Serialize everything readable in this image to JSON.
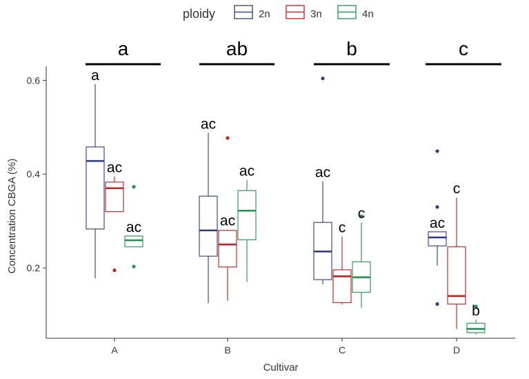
{
  "chart_data": {
    "type": "boxplot",
    "xlabel": "Cultivar",
    "ylabel": "Concentration CBGA  (%)",
    "ylim": [
      0.05,
      0.63
    ],
    "yticks": [
      {
        "value": 0.2,
        "label": "0.2"
      },
      {
        "value": 0.4,
        "label": "0.4"
      },
      {
        "value": 0.6,
        "label": "0.6"
      }
    ],
    "categories": [
      "A",
      "B",
      "C",
      "D"
    ],
    "legend": {
      "title": "ploidy",
      "position": "top",
      "entries": [
        {
          "name": "2n",
          "color": "#3d4a8c"
        },
        {
          "name": "3n",
          "color": "#cc2a2a"
        },
        {
          "name": "4n",
          "color": "#2e9b5a"
        }
      ]
    },
    "median_colors": {
      "2n": "#2e3c8a",
      "3n": "#c62020",
      "4n": "#1f9450"
    },
    "group_letters": [
      "a",
      "ab",
      "b",
      "c"
    ],
    "boxes": [
      {
        "category": "A",
        "series": "2n",
        "min": 0.178,
        "q1": 0.283,
        "median": 0.428,
        "q3": 0.458,
        "max": 0.592,
        "outliers": [],
        "letter": "a"
      },
      {
        "category": "A",
        "series": "3n",
        "min": 0.32,
        "q1": 0.32,
        "median": 0.37,
        "q3": 0.383,
        "max": 0.395,
        "outliers": [
          0.195
        ],
        "letter": "ac"
      },
      {
        "category": "A",
        "series": "4n",
        "min": 0.245,
        "q1": 0.245,
        "median": 0.259,
        "q3": 0.268,
        "max": 0.268,
        "outliers": [
          0.373,
          0.203
        ],
        "letter": "ac"
      },
      {
        "category": "B",
        "series": "2n",
        "min": 0.125,
        "q1": 0.225,
        "median": 0.28,
        "q3": 0.353,
        "max": 0.488,
        "outliers": [],
        "letter": "ac"
      },
      {
        "category": "B",
        "series": "3n",
        "min": 0.13,
        "q1": 0.202,
        "median": 0.25,
        "q3": 0.28,
        "max": 0.282,
        "outliers": [
          0.477
        ],
        "letter": "ac"
      },
      {
        "category": "B",
        "series": "4n",
        "min": 0.17,
        "q1": 0.26,
        "median": 0.322,
        "q3": 0.365,
        "max": 0.388,
        "outliers": [],
        "letter": "ac"
      },
      {
        "category": "C",
        "series": "2n",
        "min": 0.165,
        "q1": 0.175,
        "median": 0.235,
        "q3": 0.297,
        "max": 0.385,
        "outliers": [
          0.604
        ],
        "letter": "ac"
      },
      {
        "category": "C",
        "series": "3n",
        "min": 0.122,
        "q1": 0.126,
        "median": 0.182,
        "q3": 0.196,
        "max": 0.267,
        "outliers": [],
        "letter": "c"
      },
      {
        "category": "C",
        "series": "4n",
        "min": 0.115,
        "q1": 0.148,
        "median": 0.18,
        "q3": 0.213,
        "max": 0.297,
        "outliers": [
          0.31
        ],
        "letter": "c"
      },
      {
        "category": "D",
        "series": "2n",
        "min": 0.205,
        "q1": 0.247,
        "median": 0.265,
        "q3": 0.277,
        "max": 0.277,
        "outliers": [
          0.449,
          0.33,
          0.123
        ],
        "letter": "ac"
      },
      {
        "category": "D",
        "series": "3n",
        "min": 0.07,
        "q1": 0.123,
        "median": 0.14,
        "q3": 0.245,
        "max": 0.35,
        "outliers": [],
        "letter": "c"
      },
      {
        "category": "D",
        "series": "4n",
        "min": 0.058,
        "q1": 0.062,
        "median": 0.07,
        "q3": 0.082,
        "max": 0.09,
        "outliers": [
          0.118
        ],
        "letter": "b"
      }
    ]
  }
}
